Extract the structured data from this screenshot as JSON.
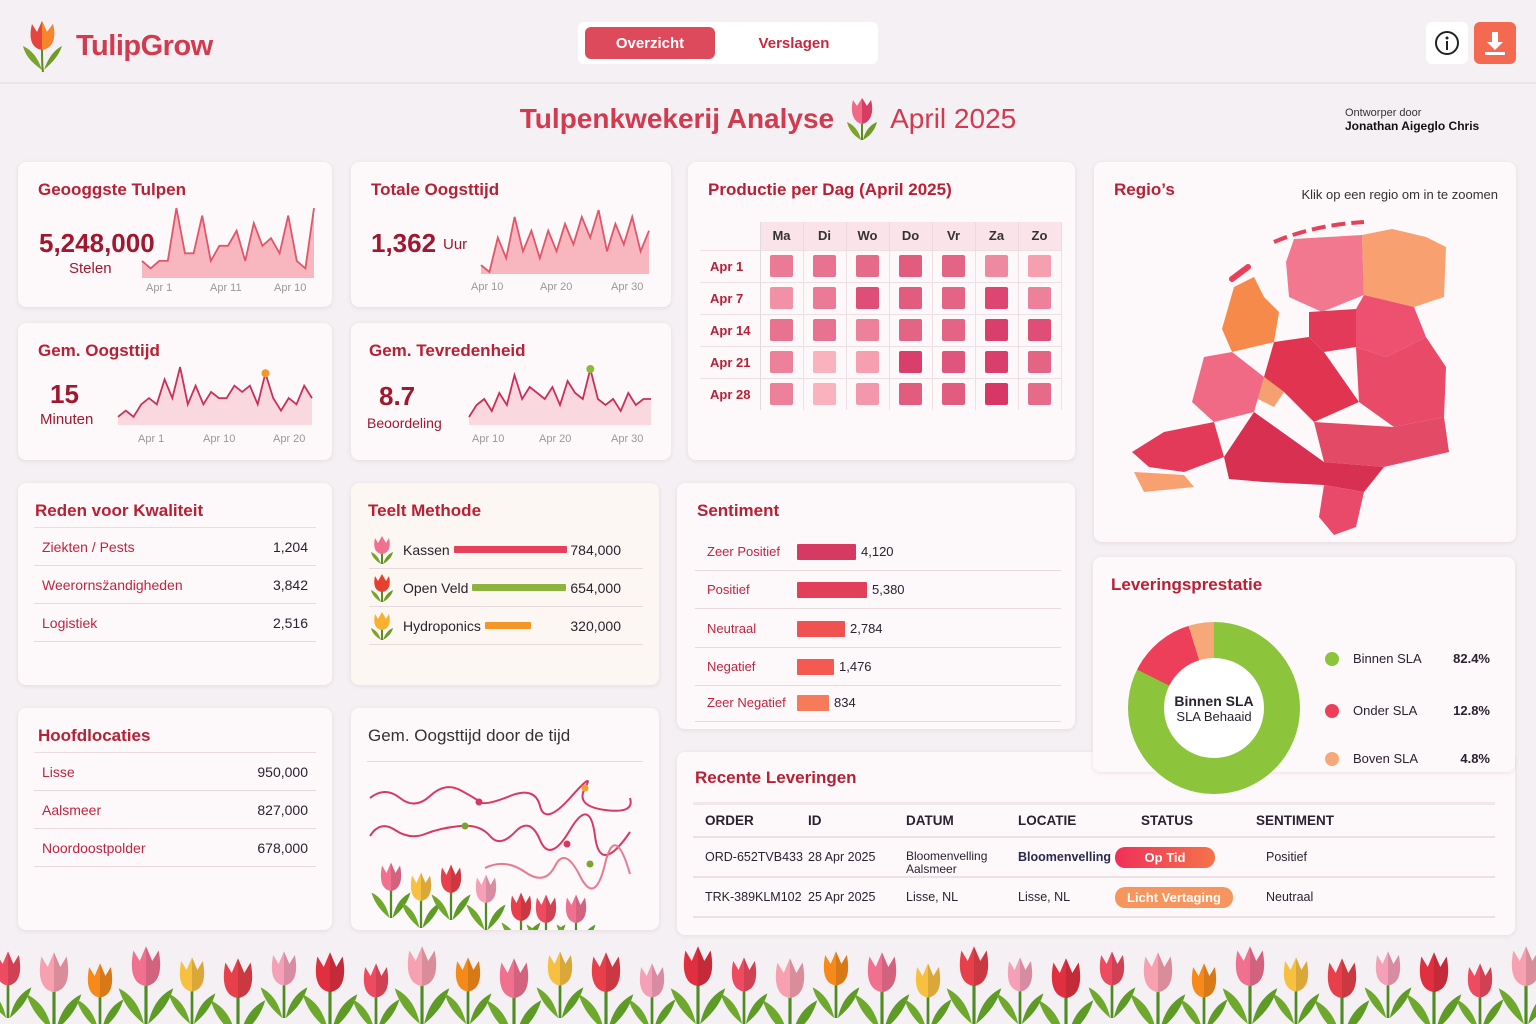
{
  "app": {
    "name": "TulipGrow"
  },
  "nav": {
    "tabs": [
      {
        "label": "Overzicht",
        "active": true
      },
      {
        "label": "Verslagen",
        "active": false
      }
    ]
  },
  "header_icons": [
    "info-icon",
    "download-icon"
  ],
  "page": {
    "title": "Tulpenkwekerij Analyse",
    "period": "April 2025",
    "designer_label": "Ontworper door",
    "designer_name": "Jonathan Aigeglo Chris"
  },
  "colors": {
    "brand": "#d23a4f",
    "title": "#b82035",
    "green": "#8cc43c",
    "orange": "#f5a060",
    "red": "#e8405a"
  },
  "kpis": [
    {
      "title": "Geooggste Tulpen",
      "value": "5,248,000",
      "unit": "Stelen",
      "axis": [
        "Apr 1",
        "Apr 11",
        "Apr 10"
      ],
      "series": [
        2,
        1,
        2,
        2,
        9,
        3,
        3,
        8,
        2,
        4,
        4,
        6,
        2,
        7,
        4,
        5,
        3,
        8,
        2,
        1,
        9
      ]
    },
    {
      "title": "Totale Oogsttijd",
      "value": "1,362",
      "unit": "Uur",
      "axis": [
        "Apr 10",
        "Apr 20",
        "Apr 30"
      ],
      "series": [
        1,
        0,
        5,
        2,
        8,
        3,
        6,
        2,
        6,
        3,
        7,
        4,
        8,
        5,
        9,
        3,
        7,
        4,
        8,
        3,
        6
      ]
    },
    {
      "title": "Gem. Oogsttijd",
      "value": "15",
      "unit": "Minuten",
      "axis": [
        "Apr 1",
        "Apr 10",
        "Apr 20"
      ],
      "series": [
        1,
        2,
        1,
        3,
        4,
        3,
        7,
        4,
        9,
        3,
        6,
        3,
        5,
        4,
        4,
        6,
        5,
        6,
        3,
        8,
        4,
        2,
        4,
        3,
        6,
        4
      ],
      "highlight": 19,
      "highlight_color": "#f5962a"
    },
    {
      "title": "Gem. Tevredenheid",
      "value": "8.7",
      "unit": "Beoordeling",
      "axis": [
        "Apr 10",
        "Apr 20",
        "Apr 30"
      ],
      "series": [
        1,
        3,
        4,
        2,
        5,
        3,
        8,
        4,
        6,
        5,
        4,
        6,
        3,
        7,
        5,
        4,
        9,
        4,
        3,
        4,
        2,
        5,
        3,
        4,
        4
      ],
      "highlight": 16,
      "highlight_color": "#8cbb3c"
    }
  ],
  "heatmap": {
    "title": "Productie per Dag (April 2025)",
    "days": [
      "Ma",
      "Di",
      "Wo",
      "Do",
      "Vr",
      "Za",
      "Zo"
    ],
    "weeks": [
      "Apr 1",
      "Apr 7",
      "Apr 14",
      "Apr 21",
      "Apr 28"
    ],
    "intensity": [
      [
        0.5,
        0.55,
        0.6,
        0.7,
        0.65,
        0.4,
        0.25
      ],
      [
        0.35,
        0.5,
        0.8,
        0.7,
        0.65,
        0.85,
        0.45
      ],
      [
        0.55,
        0.55,
        0.45,
        0.65,
        0.65,
        0.9,
        0.8
      ],
      [
        0.45,
        0.12,
        0.25,
        0.9,
        0.75,
        0.9,
        0.65
      ],
      [
        0.45,
        0.12,
        0.3,
        0.7,
        0.7,
        0.95,
        0.6
      ]
    ]
  },
  "regions": {
    "title": "Regio’s",
    "hint": "Klik op een regio om in te zoomen"
  },
  "quality": {
    "title": "Reden voor Kwaliteit",
    "rows": [
      {
        "name": "Ziekten / Pests",
        "value": "1,204"
      },
      {
        "name": "Weerornsz̈andigheden",
        "value": "3,842"
      },
      {
        "name": "Logistiek",
        "value": "2,516"
      }
    ]
  },
  "methods": {
    "title": "Teelt Methode",
    "rows": [
      {
        "name": "Kassen",
        "value": "784,000",
        "num": 784000,
        "color": "#e8405a",
        "icon": "tulip-pink-icon"
      },
      {
        "name": "Open Veld",
        "value": "654,000",
        "num": 654000,
        "color": "#8cb43c",
        "icon": "tulip-red-icon"
      },
      {
        "name": "Hydroponics",
        "value": "320,000",
        "num": 320000,
        "color": "#f5962a",
        "icon": "tulip-yellow-icon"
      }
    ]
  },
  "sentiment": {
    "title": "Sentiment",
    "rows": [
      {
        "name": "Zeer Positief",
        "value": "4,120",
        "num": 4120,
        "color": "#d63a62"
      },
      {
        "name": "Positief",
        "value": "5,380",
        "num": 5380,
        "color": "#e2405a"
      },
      {
        "name": "Neutraal",
        "value": "2,784",
        "num": 2784,
        "color": "#f05252"
      },
      {
        "name": "Negatief",
        "value": "1,476",
        "num": 1476,
        "color": "#f55a50"
      },
      {
        "name": "Zeer Negatief",
        "value": "834",
        "num": 834,
        "color": "#f77a5a"
      }
    ]
  },
  "locations": {
    "title": "Hoofdlocaties",
    "rows": [
      {
        "name": "Lisse",
        "value": "950,000"
      },
      {
        "name": "Aalsmeer",
        "value": "827,000"
      },
      {
        "name": "Noordoostpolder",
        "value": "678,000"
      }
    ]
  },
  "trend": {
    "title": "Gem. Oogsttijd door de tijd"
  },
  "delivery": {
    "title": "Leveringsprestatie",
    "center_title": "Binnen SLA",
    "center_sub": "SLA Behaaid",
    "segments": [
      {
        "name": "Binnen SLA",
        "pct": "82.4%",
        "num": 82.4,
        "color": "#8cc43c"
      },
      {
        "name": "Onder SLA",
        "pct": "12.8%",
        "num": 12.8,
        "color": "#ee3f5a"
      },
      {
        "name": "Boven SLA",
        "pct": "4.8%",
        "num": 4.8,
        "color": "#f7a878"
      }
    ]
  },
  "recent": {
    "title": "Recente Leveringen",
    "columns": [
      "ORDER",
      "ID",
      "DATUM",
      "LOCATIE",
      "STATUS",
      "SENTIMENT"
    ],
    "rows": [
      {
        "order": "ORD-652TVB433",
        "id": "28 Apr 2025",
        "datum": "Bloomenvelling Aalsmeer",
        "locatie": "Bloomenvelling",
        "status": "Op Tid",
        "sentiment": "Positief"
      },
      {
        "order": "TRK-389KLM102",
        "id": "25 Apr 2025",
        "datum": "Lisse, NL",
        "locatie": "Lisse, NL",
        "status": "Licht Vertaging",
        "sentiment": "Neutraal"
      }
    ]
  }
}
